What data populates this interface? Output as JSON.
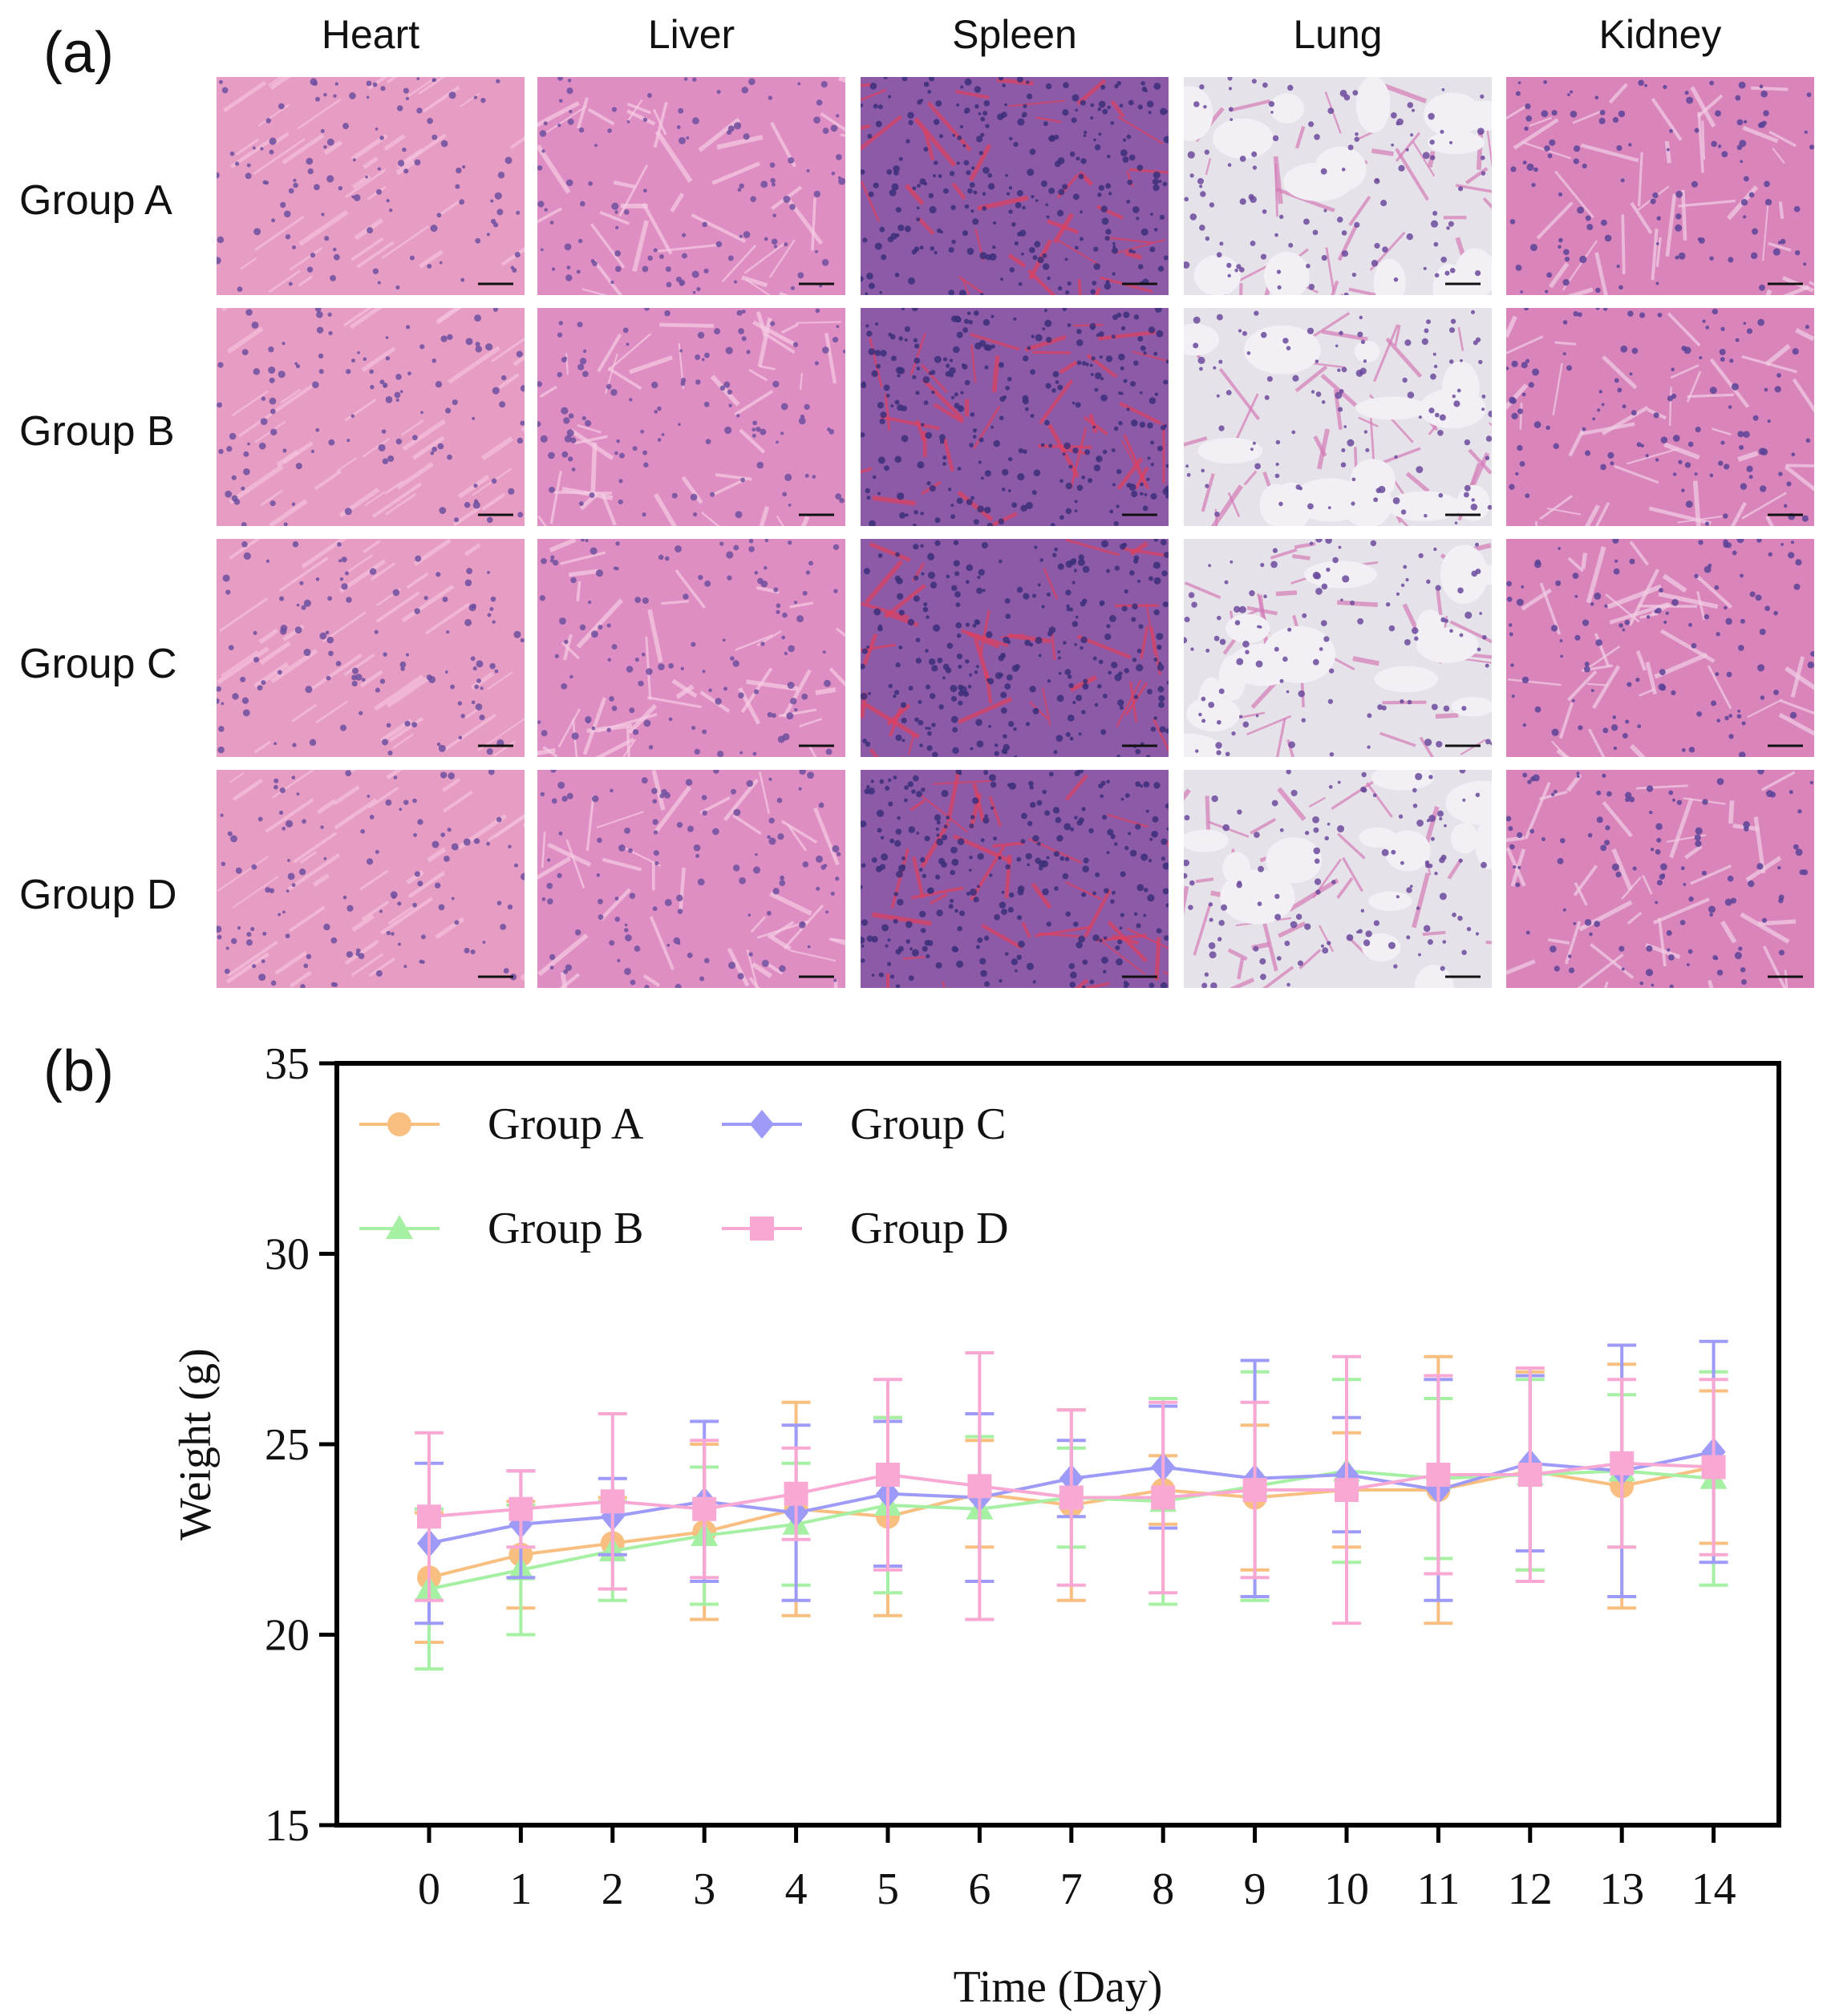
{
  "panel_a": {
    "letter": "(a)",
    "columns": [
      "Heart",
      "Liver",
      "Spleen",
      "Lung",
      "Kidney"
    ],
    "rows": [
      "Group A",
      "Group B",
      "Group C",
      "Group D"
    ]
  },
  "panel_b": {
    "letter": "(b)"
  },
  "tile_palettes": {
    "Heart": {
      "bg": "#e79cc4",
      "nuc": "#6c4fa0",
      "fiber": "#f4c2dc"
    },
    "Liver": {
      "bg": "#df8ec4",
      "nuc": "#70509f",
      "fiber": "#f6cde4"
    },
    "Spleen": {
      "bg": "#8d5aa8",
      "nuc": "#3b2f7a",
      "fiber": "#e0405e"
    },
    "Lung": {
      "bg": "#e6e2ea",
      "nuc": "#6b4a9c",
      "fiber": "#d47cb8"
    },
    "Kidney": {
      "bg": "#da84bc",
      "nuc": "#5a4398",
      "fiber": "#f2cfe4"
    }
  },
  "chart_data": {
    "type": "line",
    "title": "",
    "xlabel": "Time (Day)",
    "ylabel": "Weight (g)",
    "x": [
      0,
      1,
      2,
      3,
      4,
      5,
      6,
      7,
      8,
      9,
      10,
      11,
      12,
      13,
      14
    ],
    "ylim": [
      15,
      35
    ],
    "yticks": [
      15,
      20,
      25,
      30,
      35
    ],
    "grid": false,
    "legend_position": "top-left",
    "series": [
      {
        "name": "Group A",
        "color": "#f9bf80",
        "marker": "circle",
        "values": [
          21.5,
          22.1,
          22.4,
          22.7,
          23.3,
          23.1,
          23.7,
          23.4,
          23.8,
          23.6,
          23.8,
          23.8,
          24.3,
          23.9,
          24.4
        ],
        "errors": [
          1.7,
          1.4,
          1.2,
          2.3,
          2.8,
          2.6,
          1.4,
          2.5,
          0.9,
          1.9,
          1.5,
          3.5,
          2.6,
          3.2,
          2.0
        ]
      },
      {
        "name": "Group B",
        "color": "#a6f0a4",
        "marker": "triangle",
        "values": [
          21.2,
          21.7,
          22.2,
          22.6,
          22.9,
          23.4,
          23.3,
          23.6,
          23.5,
          23.9,
          24.3,
          24.1,
          24.2,
          24.3,
          24.1
        ],
        "errors": [
          2.1,
          1.7,
          1.3,
          1.8,
          1.6,
          2.3,
          1.9,
          1.3,
          2.7,
          3.0,
          2.4,
          2.1,
          2.5,
          2.0,
          2.8
        ]
      },
      {
        "name": "Group C",
        "color": "#9e9af8",
        "marker": "diamond",
        "values": [
          22.4,
          22.9,
          23.1,
          23.5,
          23.2,
          23.7,
          23.6,
          24.1,
          24.4,
          24.1,
          24.2,
          23.8,
          24.5,
          24.3,
          24.8
        ],
        "errors": [
          2.1,
          1.4,
          1.0,
          2.1,
          2.3,
          1.9,
          2.2,
          1.0,
          1.6,
          3.1,
          1.5,
          2.9,
          2.3,
          3.3,
          2.9
        ]
      },
      {
        "name": "Group D",
        "color": "#f9a8d4",
        "marker": "square",
        "values": [
          23.1,
          23.3,
          23.5,
          23.3,
          23.7,
          24.2,
          23.9,
          23.6,
          23.6,
          23.8,
          23.8,
          24.2,
          24.2,
          24.5,
          24.4
        ],
        "errors": [
          2.2,
          1.0,
          2.3,
          1.8,
          1.2,
          2.5,
          3.5,
          2.3,
          2.5,
          2.3,
          3.5,
          2.6,
          2.8,
          2.2,
          2.3
        ]
      }
    ]
  }
}
